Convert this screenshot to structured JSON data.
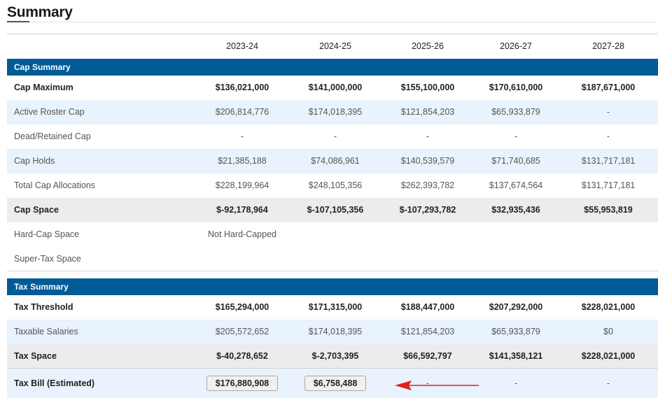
{
  "page": {
    "title": "Summary"
  },
  "columns": [
    "2023-24",
    "2024-25",
    "2025-26",
    "2026-27",
    "2027-28"
  ],
  "cap_summary": {
    "header": "Cap Summary",
    "rows": [
      {
        "label": "Cap Maximum",
        "values": [
          "$136,021,000",
          "$141,000,000",
          "$155,100,000",
          "$170,610,000",
          "$187,671,000"
        ]
      },
      {
        "label": "Active Roster Cap",
        "values": [
          "$206,814,776",
          "$174,018,395",
          "$121,854,203",
          "$65,933,879",
          "-"
        ]
      },
      {
        "label": "Dead/Retained Cap",
        "values": [
          "-",
          "-",
          "-",
          "-",
          "-"
        ]
      },
      {
        "label": "Cap Holds",
        "values": [
          "$21,385,188",
          "$74,086,961",
          "$140,539,579",
          "$71,740,685",
          "$131,717,181"
        ]
      },
      {
        "label": "Total Cap Allocations",
        "values": [
          "$228,199,964",
          "$248,105,356",
          "$262,393,782",
          "$137,674,564",
          "$131,717,181"
        ]
      },
      {
        "label": "Cap Space",
        "values": [
          "$-92,178,964",
          "$-107,105,356",
          "$-107,293,782",
          "$32,935,436",
          "$55,953,819"
        ]
      },
      {
        "label": "Hard-Cap Space",
        "values": [
          "Not Hard-Capped",
          "",
          "",
          "",
          ""
        ]
      },
      {
        "label": "Super-Tax Space",
        "values": [
          "",
          "",
          "",
          "",
          ""
        ]
      }
    ]
  },
  "tax_summary": {
    "header": "Tax Summary",
    "rows": [
      {
        "label": "Tax Threshold",
        "values": [
          "$165,294,000",
          "$171,315,000",
          "$188,447,000",
          "$207,292,000",
          "$228,021,000"
        ]
      },
      {
        "label": "Taxable Salaries",
        "values": [
          "$205,572,652",
          "$174,018,395",
          "$121,854,203",
          "$65,933,879",
          "$0"
        ]
      },
      {
        "label": "Tax Space",
        "values": [
          "$-40,278,652",
          "$-2,703,395",
          "$66,592,797",
          "$141,358,121",
          "$228,021,000"
        ]
      },
      {
        "label": "Tax Bill (Estimated)",
        "values": [
          "$176,880,908",
          "$6,758,488",
          "-",
          "-",
          "-"
        ]
      }
    ]
  },
  "annotation": {
    "arrow_color": "#e02020"
  }
}
